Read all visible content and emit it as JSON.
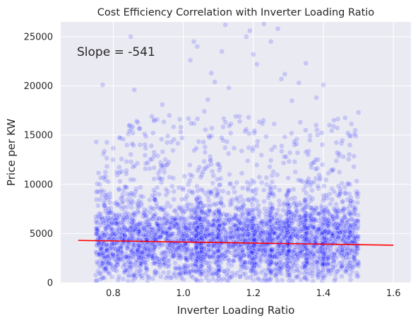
{
  "chart_data": {
    "type": "scatter",
    "title": "Cost Efficiency Correlation with Inverter Loading Ratio",
    "xlabel": "Inverter Loading Ratio",
    "ylabel": "Price per KW",
    "xlim": [
      0.65,
      1.65
    ],
    "ylim": [
      0,
      26500
    ],
    "xticks": [
      0.8,
      1.0,
      1.2,
      1.4,
      1.6
    ],
    "xtick_labels": [
      "0.8",
      "1.0",
      "1.2",
      "1.4",
      "1.6"
    ],
    "yticks": [
      0,
      5000,
      10000,
      15000,
      20000,
      25000
    ],
    "ytick_labels": [
      "0",
      "5000",
      "10000",
      "15000",
      "20000",
      "25000"
    ],
    "grid": true,
    "background": "#eaeaf2",
    "point_color": "#0000ff",
    "point_opacity": 0.15,
    "line_color": "#ff0000",
    "scatter_x_range": [
      0.75,
      1.5
    ],
    "scatter_dense_band": [
      0,
      10000
    ],
    "regression": {
      "slope": -541,
      "x": [
        0.7,
        1.6
      ],
      "y": [
        4300,
        3810
      ]
    },
    "annotation": "Slope = -541",
    "outliers": [
      {
        "x": 0.77,
        "y": 20100
      },
      {
        "x": 0.85,
        "y": 25000
      },
      {
        "x": 0.86,
        "y": 19600
      },
      {
        "x": 0.91,
        "y": 16900
      },
      {
        "x": 0.96,
        "y": 17000
      },
      {
        "x": 0.99,
        "y": 16600
      },
      {
        "x": 1.02,
        "y": 22600
      },
      {
        "x": 1.03,
        "y": 24500
      },
      {
        "x": 1.04,
        "y": 24000
      },
      {
        "x": 1.06,
        "y": 17400
      },
      {
        "x": 1.07,
        "y": 18600
      },
      {
        "x": 1.09,
        "y": 20400
      },
      {
        "x": 1.11,
        "y": 23500
      },
      {
        "x": 1.12,
        "y": 26200
      },
      {
        "x": 1.13,
        "y": 19800
      },
      {
        "x": 1.16,
        "y": 16900
      },
      {
        "x": 1.18,
        "y": 25000
      },
      {
        "x": 1.19,
        "y": 25600
      },
      {
        "x": 1.2,
        "y": 23200
      },
      {
        "x": 1.21,
        "y": 22200
      },
      {
        "x": 1.23,
        "y": 26300
      },
      {
        "x": 1.25,
        "y": 24500
      },
      {
        "x": 1.27,
        "y": 25800
      },
      {
        "x": 1.29,
        "y": 21200
      },
      {
        "x": 1.31,
        "y": 18500
      },
      {
        "x": 1.33,
        "y": 20300
      },
      {
        "x": 1.35,
        "y": 22300
      },
      {
        "x": 1.38,
        "y": 18800
      },
      {
        "x": 1.4,
        "y": 20100
      },
      {
        "x": 1.43,
        "y": 16500
      },
      {
        "x": 1.47,
        "y": 15200
      },
      {
        "x": 1.5,
        "y": 17300
      },
      {
        "x": 1.15,
        "y": 16900
      },
      {
        "x": 0.94,
        "y": 18100
      },
      {
        "x": 1.28,
        "y": 20700
      },
      {
        "x": 1.08,
        "y": 21300
      }
    ]
  }
}
